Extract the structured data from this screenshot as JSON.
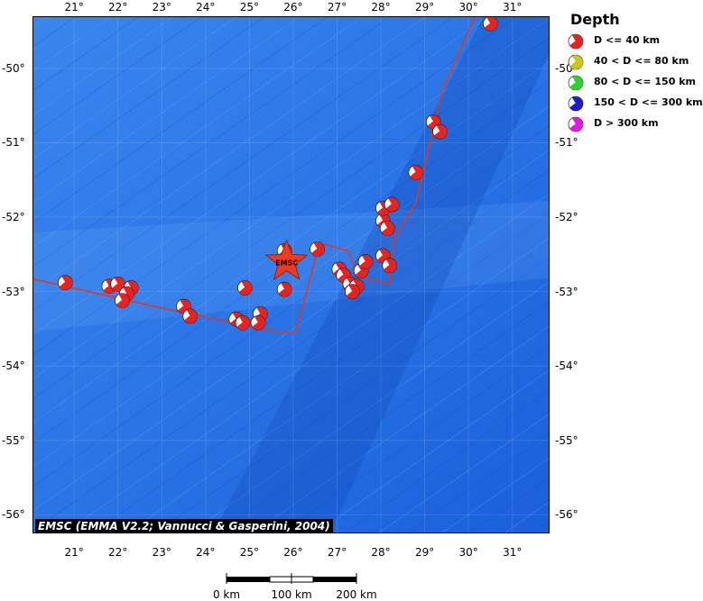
{
  "map": {
    "lon_ticks": [
      "21°",
      "22°",
      "23°",
      "24°",
      "25°",
      "26°",
      "27°",
      "28°",
      "29°",
      "30°",
      "31°"
    ],
    "lat_ticks": [
      "-50°",
      "-51°",
      "-52°",
      "-53°",
      "-54°",
      "-55°",
      "-56°"
    ],
    "lon_range": [
      20.05,
      31.85
    ],
    "lat_range": [
      -56.25,
      -49.3
    ],
    "sea_color": "#1f6be0",
    "deep_color": "#1452c8",
    "ridge_color": "#d93a2a",
    "epicenter_label": "EMSC",
    "epicenter": {
      "lon": 25.85,
      "lat": -52.6
    },
    "plate_boundary": [
      [
        20.05,
        -52.83
      ],
      [
        23.0,
        -53.22
      ],
      [
        25.75,
        -53.55
      ],
      [
        26.05,
        -53.55
      ],
      [
        26.6,
        -52.35
      ],
      [
        27.25,
        -52.45
      ],
      [
        27.5,
        -52.8
      ],
      [
        28.2,
        -52.9
      ],
      [
        28.3,
        -52.3
      ],
      [
        28.8,
        -51.8
      ],
      [
        29.4,
        -50.3
      ],
      [
        30.15,
        -49.3
      ]
    ],
    "events": [
      {
        "lon": 20.8,
        "lat": -52.88,
        "depth_class": "D <= 40 km"
      },
      {
        "lon": 21.8,
        "lat": -52.93,
        "depth_class": "D <= 40 km"
      },
      {
        "lon": 22.0,
        "lat": -52.9,
        "depth_class": "D <= 40 km"
      },
      {
        "lon": 22.3,
        "lat": -52.95,
        "depth_class": "D <= 40 km"
      },
      {
        "lon": 22.2,
        "lat": -53.03,
        "depth_class": "D <= 40 km"
      },
      {
        "lon": 22.1,
        "lat": -53.12,
        "depth_class": "D <= 40 km"
      },
      {
        "lon": 23.5,
        "lat": -53.2,
        "depth_class": "D <= 40 km"
      },
      {
        "lon": 23.65,
        "lat": -53.33,
        "depth_class": "D <= 40 km"
      },
      {
        "lon": 24.9,
        "lat": -52.95,
        "depth_class": "D <= 40 km"
      },
      {
        "lon": 24.7,
        "lat": -53.37,
        "depth_class": "D <= 40 km"
      },
      {
        "lon": 24.85,
        "lat": -53.42,
        "depth_class": "D <= 40 km"
      },
      {
        "lon": 25.25,
        "lat": -53.3,
        "depth_class": "D <= 40 km"
      },
      {
        "lon": 25.2,
        "lat": -53.42,
        "depth_class": "D <= 40 km"
      },
      {
        "lon": 25.8,
        "lat": -52.45,
        "depth_class": "D <= 40 km"
      },
      {
        "lon": 25.8,
        "lat": -52.97,
        "depth_class": "D <= 40 km"
      },
      {
        "lon": 26.55,
        "lat": -52.43,
        "depth_class": "D <= 40 km"
      },
      {
        "lon": 27.05,
        "lat": -52.7,
        "depth_class": "D <= 40 km"
      },
      {
        "lon": 27.15,
        "lat": -52.78,
        "depth_class": "D <= 40 km"
      },
      {
        "lon": 27.3,
        "lat": -52.9,
        "depth_class": "D <= 40 km"
      },
      {
        "lon": 27.45,
        "lat": -52.93,
        "depth_class": "D <= 40 km"
      },
      {
        "lon": 27.35,
        "lat": -53.0,
        "depth_class": "D <= 40 km"
      },
      {
        "lon": 27.55,
        "lat": -52.72,
        "depth_class": "D <= 40 km"
      },
      {
        "lon": 27.65,
        "lat": -52.6,
        "depth_class": "D <= 40 km"
      },
      {
        "lon": 28.05,
        "lat": -52.52,
        "depth_class": "D <= 40 km"
      },
      {
        "lon": 28.2,
        "lat": -52.65,
        "depth_class": "D <= 40 km"
      },
      {
        "lon": 28.05,
        "lat": -52.05,
        "depth_class": "D <= 40 km"
      },
      {
        "lon": 28.15,
        "lat": -52.15,
        "depth_class": "D <= 40 km"
      },
      {
        "lon": 28.05,
        "lat": -51.88,
        "depth_class": "D <= 40 km"
      },
      {
        "lon": 28.25,
        "lat": -51.83,
        "depth_class": "D <= 40 km"
      },
      {
        "lon": 28.8,
        "lat": -51.4,
        "depth_class": "D <= 40 km"
      },
      {
        "lon": 29.2,
        "lat": -50.72,
        "depth_class": "D <= 40 km"
      },
      {
        "lon": 29.35,
        "lat": -50.85,
        "depth_class": "D <= 40 km"
      },
      {
        "lon": 30.5,
        "lat": -49.4,
        "depth_class": "D <= 40 km"
      }
    ]
  },
  "legend": {
    "title": "Depth",
    "items": [
      {
        "label": "D <= 40 km",
        "color": "#e8231f"
      },
      {
        "label": "40 < D <= 80 km",
        "color": "#c8c81a"
      },
      {
        "label": "80 < D <= 150 km",
        "color": "#2bd62b"
      },
      {
        "label": "150 < D <= 300 km",
        "color": "#1a1ad0"
      },
      {
        "label": "D > 300 km",
        "color": "#e01ae0"
      }
    ]
  },
  "credit": "EMSC (EMMA V2.2; Vannucci & Gasperini, 2004)",
  "scalebar": {
    "labels": [
      "0 km",
      "100 km",
      "200 km"
    ]
  }
}
